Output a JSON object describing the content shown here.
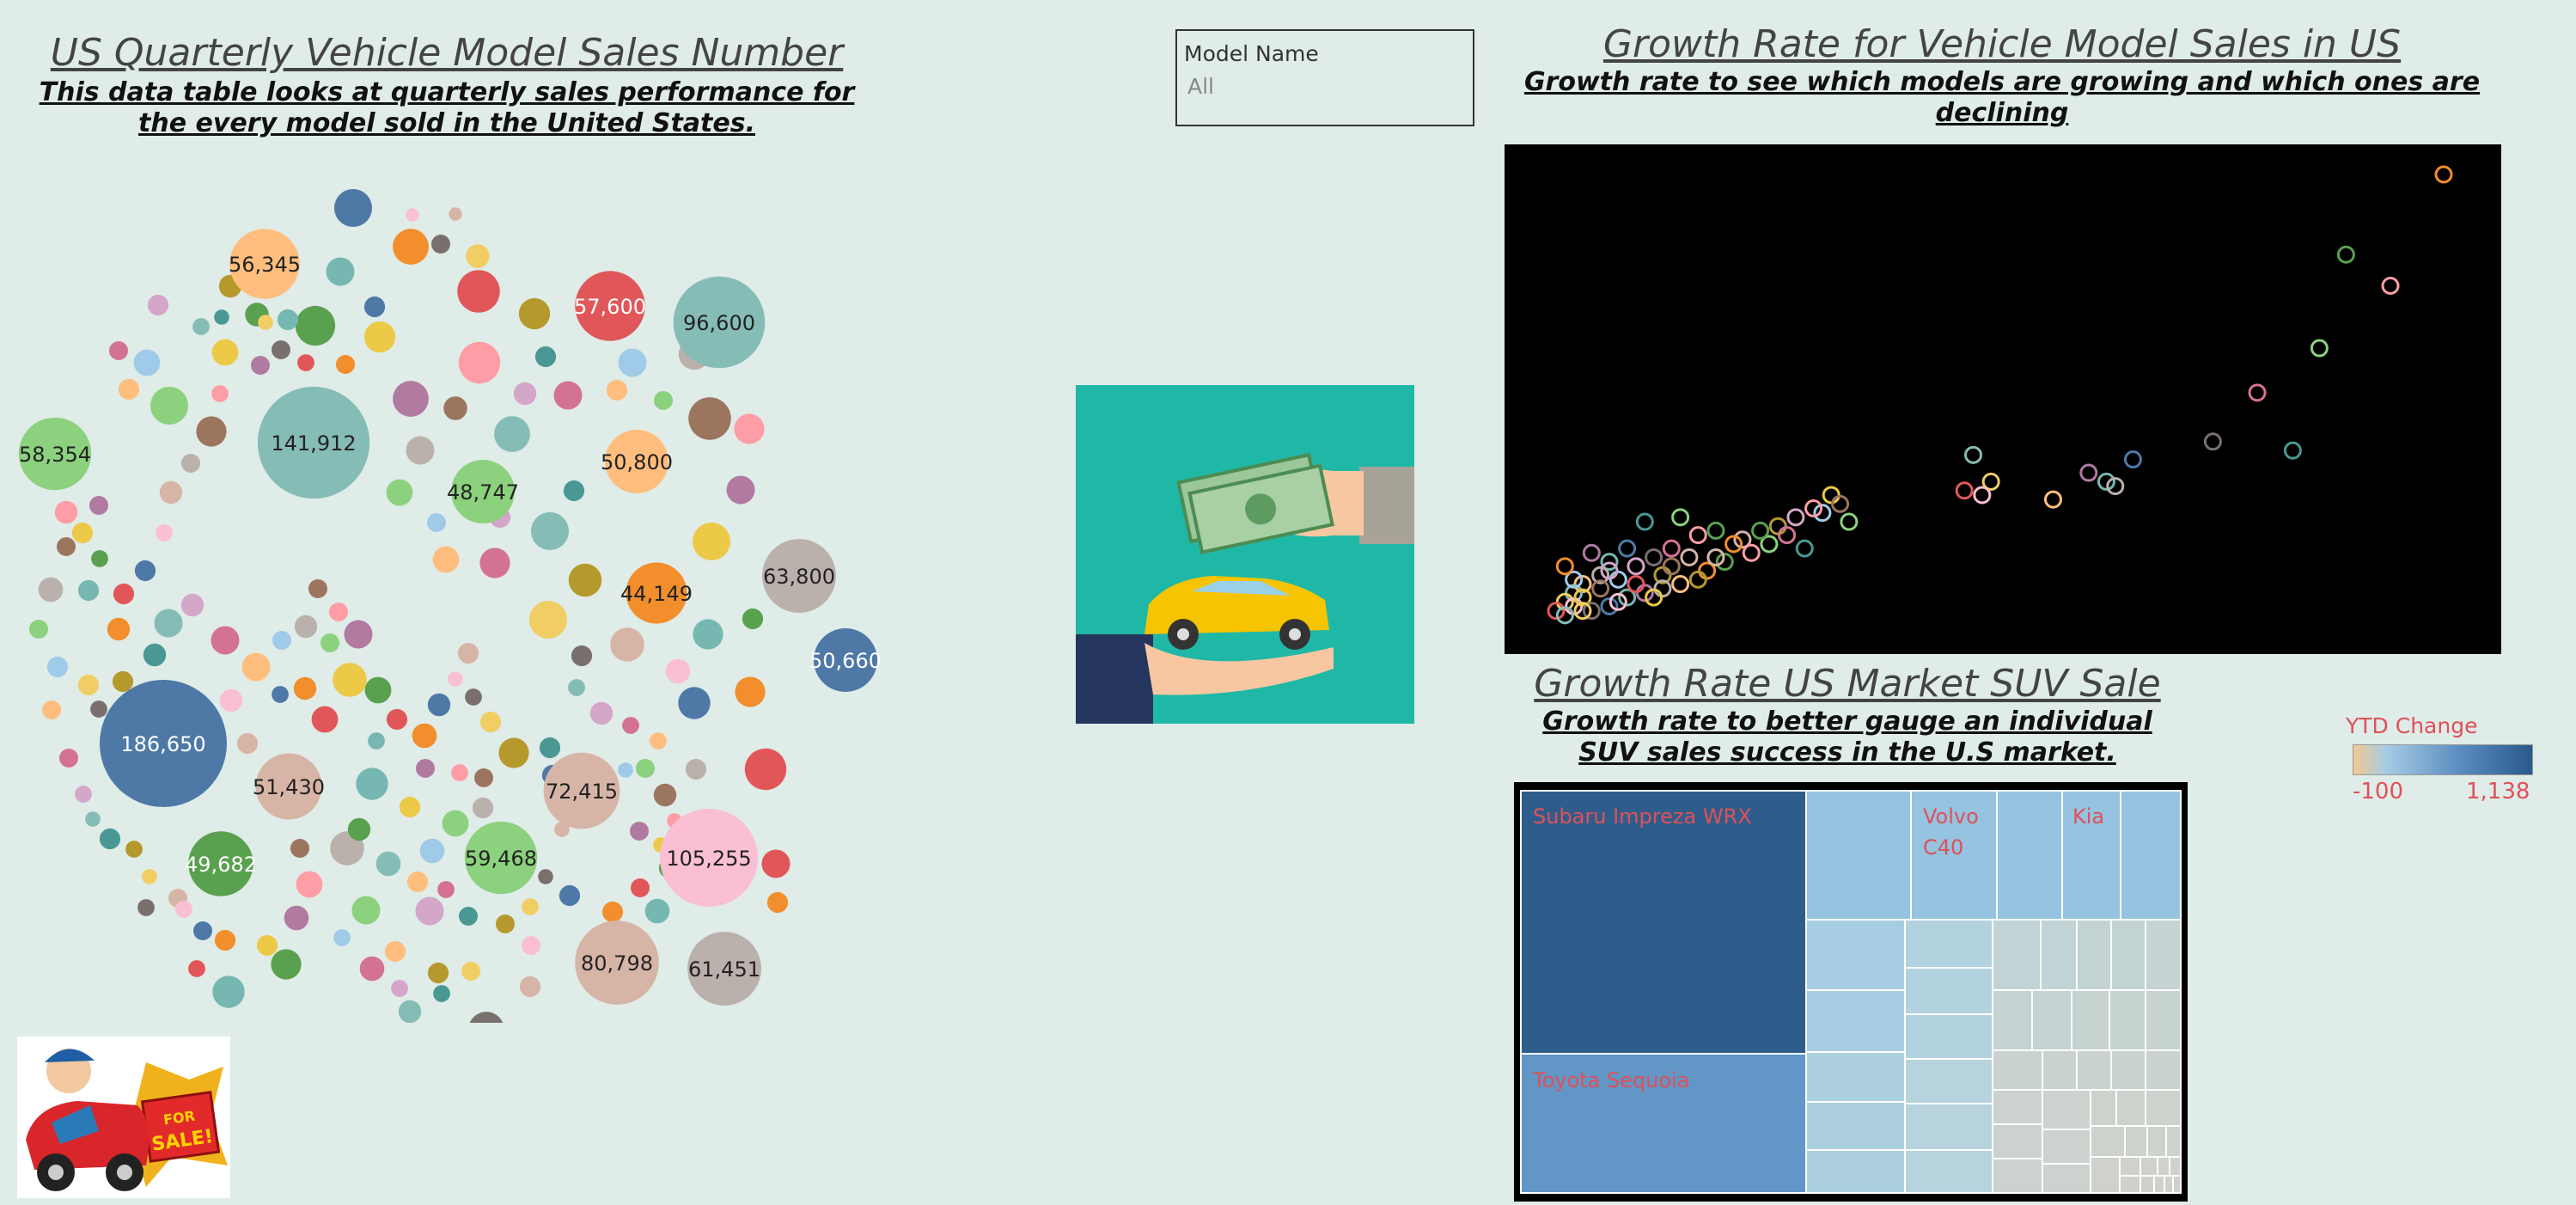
{
  "left_panel": {
    "title": "US Quarterly Vehicle Model Sales Number",
    "subtitle": "This data table looks at quarterly sales performance for the every model sold in the United States."
  },
  "filter": {
    "label": "Model Name",
    "value": "All"
  },
  "scatter_panel": {
    "title": "Growth Rate for Vehicle Model Sales in US",
    "subtitle": "Growth rate to see which models are growing and which ones are declining"
  },
  "treemap_panel": {
    "title": "Growth Rate US Market SUV Sale",
    "subtitle": "Growth rate to better gauge an individual SUV sales success in the U.S market."
  },
  "legend": {
    "title": "YTD Change",
    "min_label": "-100",
    "max_label": "1,138"
  },
  "colors": {
    "background": "#dfece8",
    "legend_text": "#e0505a",
    "treemap_dark": "#2e5d8b",
    "treemap_mid": "#6196c6",
    "treemap_light": "#95c3e0",
    "treemap_grey": "#c9d2d0"
  },
  "chart_data": [
    {
      "type": "bubble",
      "labels": [
        "186,650",
        "141,912",
        "105,255",
        "96,600",
        "80,798",
        "72,415",
        "63,800",
        "61,451",
        "59,468",
        "58,354",
        "57,600",
        "56,345",
        "51,430",
        "50,800",
        "50,660",
        "49,682",
        "48,747",
        "44,149"
      ],
      "values": [
        186650,
        141912,
        105255,
        96600,
        80798,
        72415,
        63800,
        61451,
        59468,
        58354,
        57600,
        56345,
        51430,
        50800,
        50660,
        49682,
        48747,
        44149
      ]
    },
    {
      "type": "scatter",
      "marker": "hollow-circle",
      "grid": false,
      "points": [
        [
          1.0,
          1.0
        ],
        [
          0.89,
          0.82
        ],
        [
          0.94,
          0.75
        ],
        [
          0.86,
          0.61
        ],
        [
          0.79,
          0.51
        ],
        [
          0.83,
          0.38
        ],
        [
          0.74,
          0.4
        ],
        [
          0.65,
          0.36
        ],
        [
          0.62,
          0.31
        ],
        [
          0.6,
          0.33
        ],
        [
          0.63,
          0.3
        ],
        [
          0.56,
          0.27
        ],
        [
          0.47,
          0.37
        ],
        [
          0.49,
          0.31
        ],
        [
          0.48,
          0.28
        ],
        [
          0.46,
          0.29
        ],
        [
          0.31,
          0.28
        ],
        [
          0.32,
          0.26
        ],
        [
          0.3,
          0.24
        ],
        [
          0.27,
          0.23
        ],
        [
          0.25,
          0.21
        ],
        [
          0.21,
          0.18
        ],
        [
          0.2,
          0.17
        ],
        [
          0.18,
          0.2
        ],
        [
          0.16,
          0.19
        ],
        [
          0.14,
          0.23
        ],
        [
          0.13,
          0.16
        ],
        [
          0.1,
          0.22
        ],
        [
          0.11,
          0.14
        ],
        [
          0.08,
          0.16
        ],
        [
          0.06,
          0.13
        ],
        [
          0.04,
          0.15
        ],
        [
          0.05,
          0.1
        ],
        [
          0.03,
          0.08
        ],
        [
          0.02,
          0.06
        ],
        [
          0.01,
          0.04
        ],
        [
          0.02,
          0.03
        ],
        [
          0.0,
          0.02
        ],
        [
          0.03,
          0.05
        ],
        [
          0.05,
          0.07
        ],
        [
          0.07,
          0.09
        ],
        [
          0.09,
          0.12
        ],
        [
          0.12,
          0.1
        ],
        [
          0.15,
          0.14
        ],
        [
          0.17,
          0.11
        ],
        [
          0.19,
          0.13
        ],
        [
          0.22,
          0.15
        ],
        [
          0.24,
          0.17
        ],
        [
          0.26,
          0.19
        ],
        [
          0.28,
          0.16
        ],
        [
          0.04,
          0.02
        ],
        [
          0.06,
          0.03
        ],
        [
          0.08,
          0.05
        ],
        [
          0.1,
          0.06
        ],
        [
          0.12,
          0.07
        ],
        [
          0.14,
          0.08
        ],
        [
          0.01,
          0.01
        ],
        [
          0.03,
          0.02
        ],
        [
          0.07,
          0.04
        ],
        [
          0.09,
          0.08
        ],
        [
          0.11,
          0.05
        ],
        [
          0.13,
          0.12
        ],
        [
          0.02,
          0.09
        ],
        [
          0.06,
          0.11
        ],
        [
          0.16,
          0.09
        ],
        [
          0.18,
          0.14
        ],
        [
          0.01,
          0.12
        ],
        [
          0.23,
          0.2
        ],
        [
          0.29,
          0.25
        ],
        [
          0.33,
          0.22
        ]
      ]
    },
    {
      "type": "treemap",
      "labeled_tiles": [
        "Subaru Impreza WRX",
        "Volvo C40",
        "Kia",
        "Toyota Sequoia"
      ]
    }
  ]
}
